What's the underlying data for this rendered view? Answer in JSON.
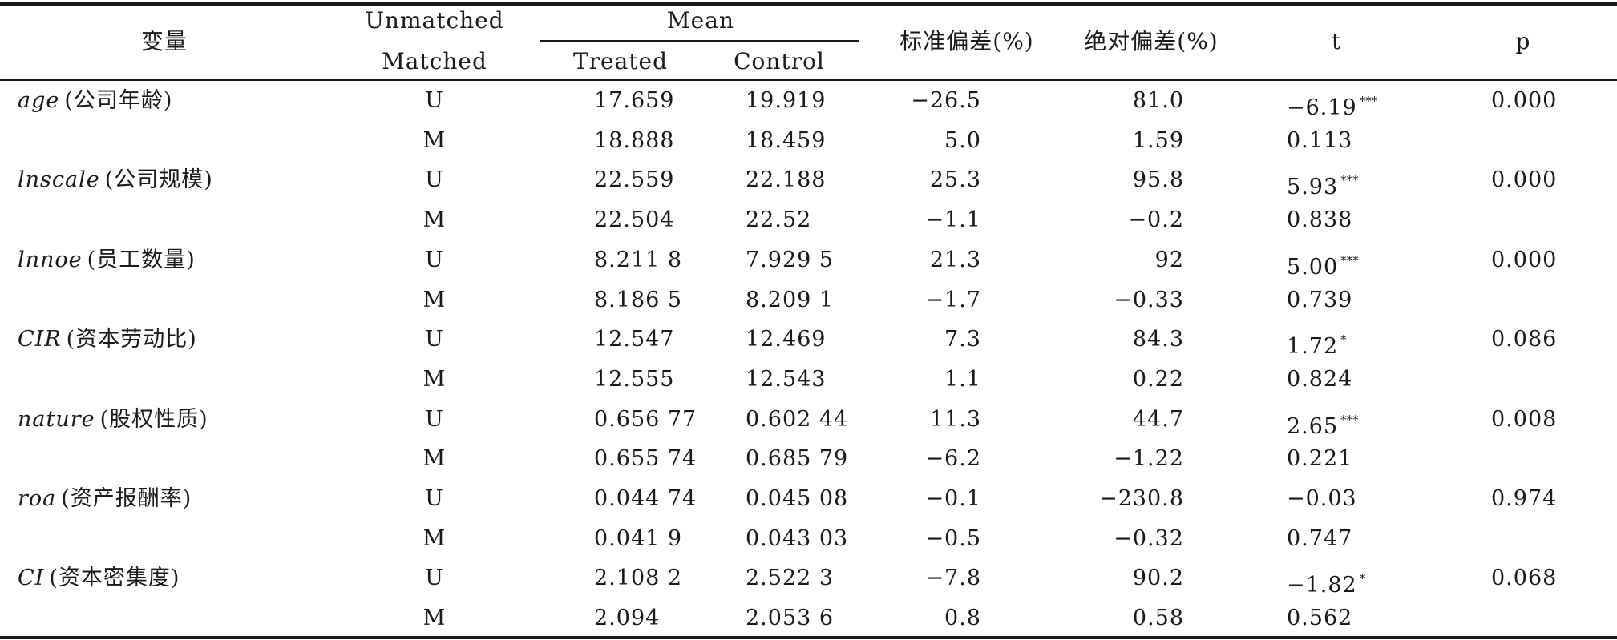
{
  "header": {
    "variable": "变量",
    "unmatched": "Unmatched",
    "matched": "Matched",
    "mean": "Mean",
    "treated": "Treated",
    "control": "Control",
    "std_bias": "标准偏差(%)",
    "abs_bias": "绝对偏差(%)",
    "t": "t",
    "p": "p"
  },
  "rows": [
    {
      "var_en": "age",
      "var_cn": "(公司年龄)",
      "um": "U",
      "treated": "17.659",
      "control": "19.919",
      "std_bias": "−26.5",
      "abs_bias": "81.0",
      "t": "−6.19",
      "stars": "***",
      "p": "0.000"
    },
    {
      "var_en": "",
      "var_cn": "",
      "um": "M",
      "treated": "18.888",
      "control": "18.459",
      "std_bias": "5.0",
      "abs_bias": "1.59",
      "t": "0.113",
      "stars": "",
      "p": ""
    },
    {
      "var_en": "lnscale",
      "var_cn": "(公司规模)",
      "um": "U",
      "treated": "22.559",
      "control": "22.188",
      "std_bias": "25.3",
      "abs_bias": "95.8",
      "t": "5.93",
      "stars": "***",
      "p": "0.000"
    },
    {
      "var_en": "",
      "var_cn": "",
      "um": "M",
      "treated": "22.504",
      "control": "22.52",
      "std_bias": "−1.1",
      "abs_bias": "−0.2",
      "t": "0.838",
      "stars": "",
      "p": ""
    },
    {
      "var_en": "lnnoe",
      "var_cn": "(员工数量)",
      "um": "U",
      "treated": "8.211 8",
      "control": "7.929 5",
      "std_bias": "21.3",
      "abs_bias": "92",
      "t": "5.00",
      "stars": "***",
      "p": "0.000"
    },
    {
      "var_en": "",
      "var_cn": "",
      "um": "M",
      "treated": "8.186 5",
      "control": "8.209 1",
      "std_bias": "−1.7",
      "abs_bias": "−0.33",
      "t": "0.739",
      "stars": "",
      "p": ""
    },
    {
      "var_en": "CIR",
      "var_cn": "(资本劳动比)",
      "um": "U",
      "treated": "12.547",
      "control": "12.469",
      "std_bias": "7.3",
      "abs_bias": "84.3",
      "t": "1.72",
      "stars": "*",
      "p": "0.086"
    },
    {
      "var_en": "",
      "var_cn": "",
      "um": "M",
      "treated": "12.555",
      "control": "12.543",
      "std_bias": "1.1",
      "abs_bias": "0.22",
      "t": "0.824",
      "stars": "",
      "p": ""
    },
    {
      "var_en": "nature",
      "var_cn": "(股权性质)",
      "um": "U",
      "treated": "0.656 77",
      "control": "0.602 44",
      "std_bias": "11.3",
      "abs_bias": "44.7",
      "t": "2.65",
      "stars": "***",
      "p": "0.008"
    },
    {
      "var_en": "",
      "var_cn": "",
      "um": "M",
      "treated": "0.655 74",
      "control": "0.685 79",
      "std_bias": "−6.2",
      "abs_bias": "−1.22",
      "t": "0.221",
      "stars": "",
      "p": ""
    },
    {
      "var_en": "roa",
      "var_cn": "(资产报酬率)",
      "um": "U",
      "treated": "0.044 74",
      "control": "0.045 08",
      "std_bias": "−0.1",
      "abs_bias": "−230.8",
      "t": "−0.03",
      "stars": "",
      "p": "0.974"
    },
    {
      "var_en": "",
      "var_cn": "",
      "um": "M",
      "treated": "0.041 9",
      "control": "0.043 03",
      "std_bias": "−0.5",
      "abs_bias": "−0.32",
      "t": "0.747",
      "stars": "",
      "p": ""
    },
    {
      "var_en": "CI",
      "var_cn": "(资本密集度)",
      "um": "U",
      "treated": "2.108 2",
      "control": "2.522 3",
      "std_bias": "−7.8",
      "abs_bias": "90.2",
      "t": "−1.82",
      "stars": "*",
      "p": "0.068"
    },
    {
      "var_en": "",
      "var_cn": "",
      "um": "M",
      "treated": "2.094",
      "control": "2.053 6",
      "std_bias": "0.8",
      "abs_bias": "0.58",
      "t": "0.562",
      "stars": "",
      "p": ""
    }
  ]
}
